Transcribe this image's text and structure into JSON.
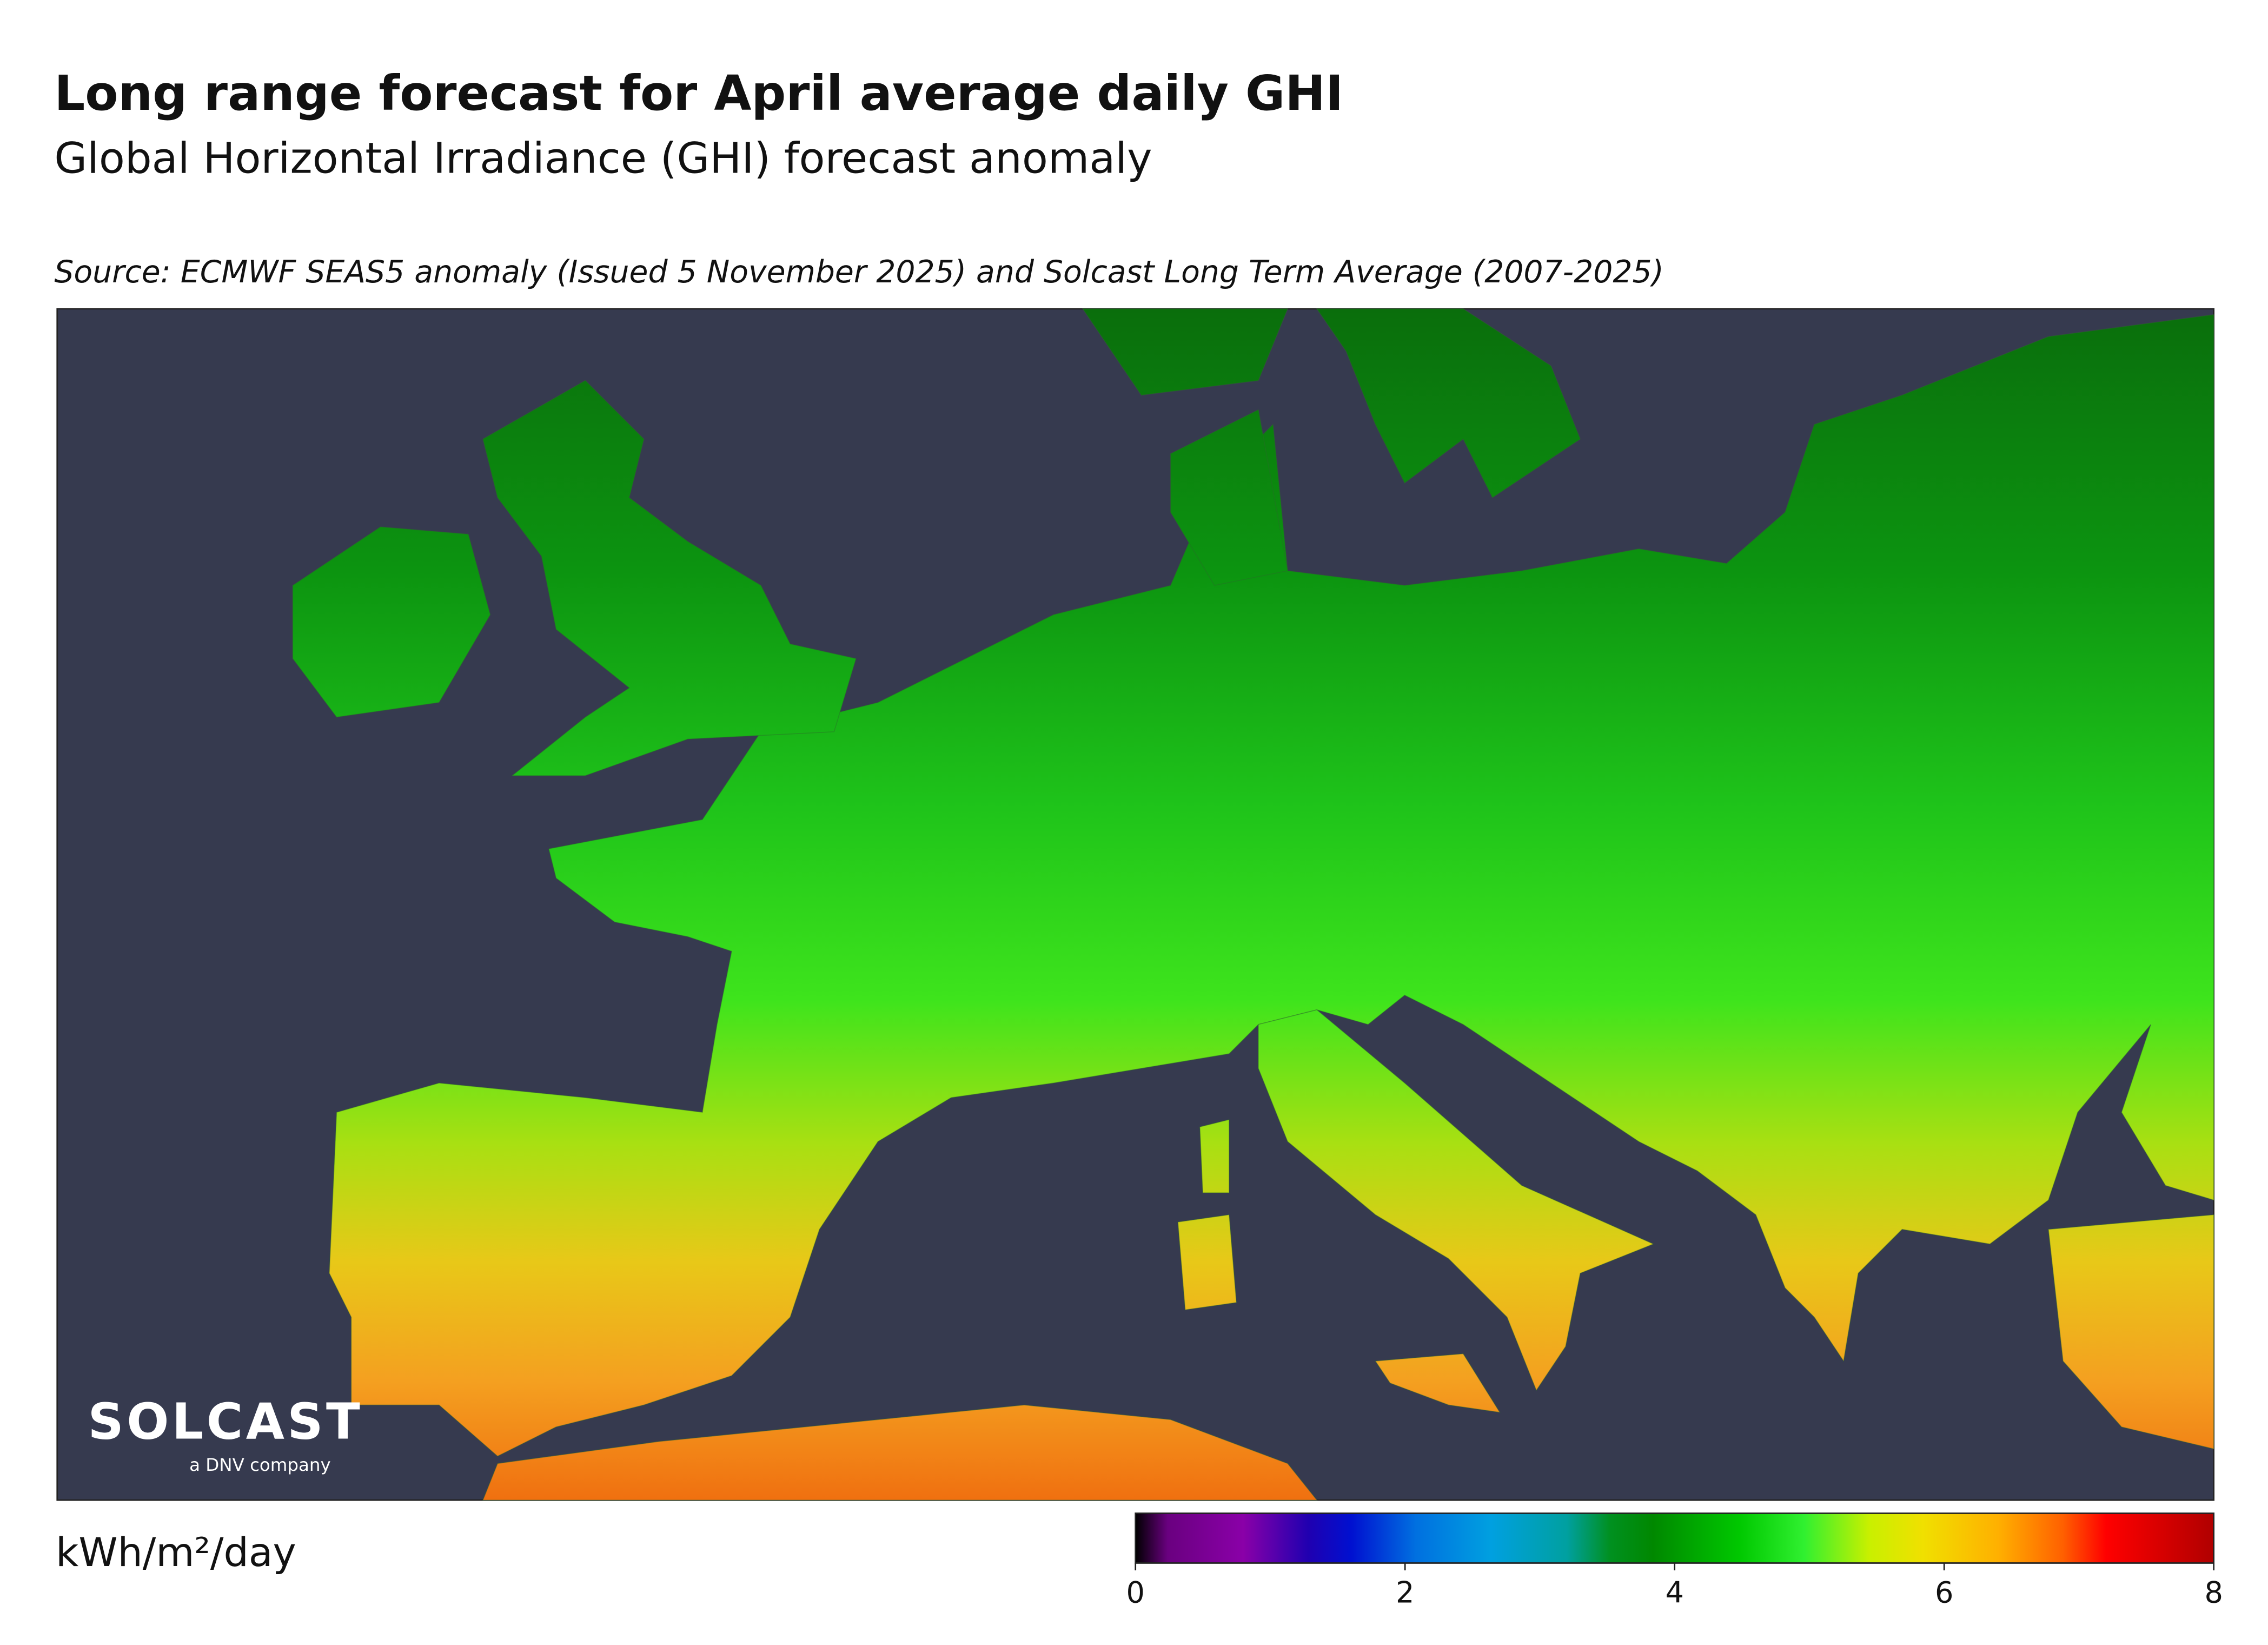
{
  "header": {
    "title": "Long range forecast for April average daily GHI",
    "subtitle": "Global Horizontal Irradiance (GHI) forecast anomaly",
    "source": "Source: ECMWF SEAS5 anomaly (Issued 5 November 2025) and Solcast Long Term Average (2007-2025)"
  },
  "logo": {
    "name": "SOLCAST",
    "tagline": "a DNV company"
  },
  "colorbar": {
    "label": "kWh/m²/day",
    "lim": [
      0,
      8
    ],
    "ticks": [
      0,
      2,
      4,
      6,
      8
    ]
  }
}
